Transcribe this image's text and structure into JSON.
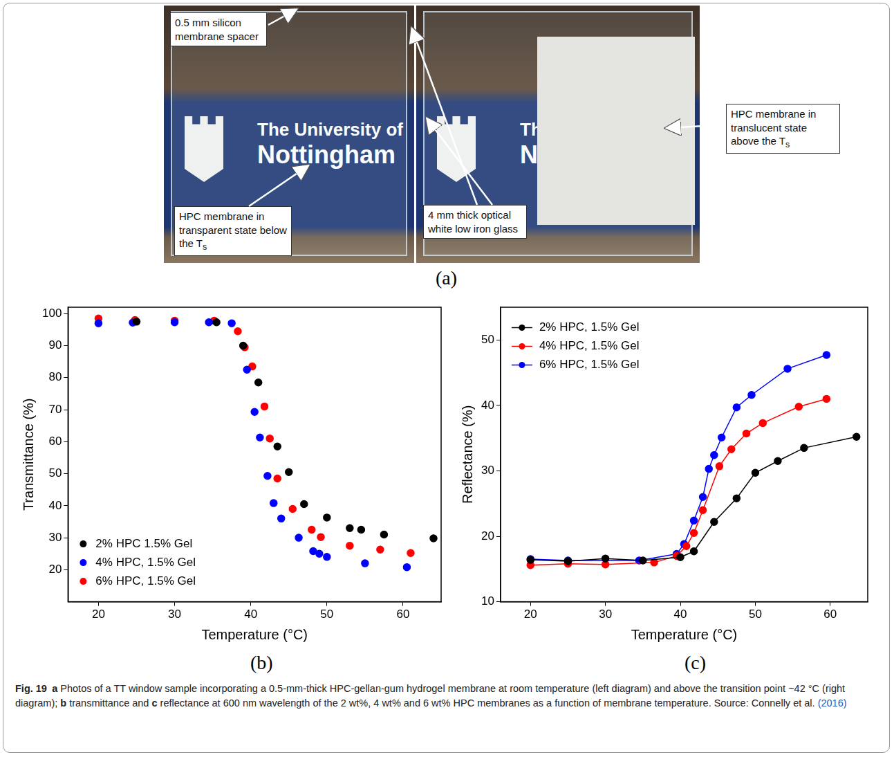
{
  "photo": {
    "background_text": [
      "The University of",
      "Nottingham"
    ],
    "annotations": [
      {
        "parts": [
          {
            "text": "0.5 mm silicon membrane spacer"
          }
        ]
      },
      {
        "parts": [
          {
            "text": "HPC membrane in transparent state below the T"
          },
          {
            "text": "s",
            "sub": true
          }
        ]
      },
      {
        "parts": [
          {
            "text": "4 mm thick optical white low iron glass"
          }
        ]
      },
      {
        "parts": [
          {
            "text": "HPC membrane in translucent state above the T"
          },
          {
            "text": "s",
            "sub": true
          }
        ]
      }
    ],
    "panel_label": "(a)"
  },
  "chart_data": [
    {
      "type": "scatter",
      "panel_label": "(b)",
      "x_label": "Temperature (°C)",
      "y_label": "Transmittance (%)",
      "xlim": [
        16,
        65
      ],
      "xticks": [
        20,
        30,
        40,
        50,
        60
      ],
      "ylim": [
        10,
        102
      ],
      "yticks": [
        20,
        30,
        40,
        50,
        60,
        70,
        80,
        90,
        100
      ],
      "grid": false,
      "legend": "lower left",
      "series": [
        {
          "name": "2% HPC 1.5% Gel",
          "color": "#000000",
          "marker": "circle",
          "x": [
            25,
            35.5,
            39,
            41,
            43.5,
            45,
            47,
            50,
            53,
            54.5,
            57.5,
            64
          ],
          "values": [
            97.5,
            97.3,
            90,
            78.5,
            58.5,
            50.5,
            40.5,
            36.3,
            33,
            32.5,
            31,
            29.8
          ]
        },
        {
          "name": "4% HPC, 1.5% Gel",
          "color": "#0000ff",
          "marker": "circle",
          "x": [
            20,
            24.5,
            30,
            34.5,
            37.5,
            39.5,
            40.5,
            41.2,
            42.2,
            43,
            44,
            46.3,
            48.2,
            49,
            50,
            55,
            60.5
          ],
          "values": [
            97,
            97.2,
            97.3,
            97.3,
            97,
            82.5,
            69.3,
            61.3,
            49.3,
            40.8,
            36,
            30,
            25.8,
            25,
            24,
            22,
            20.8
          ]
        },
        {
          "name": "6% HPC, 1.5% Gel",
          "color": "#ff0000",
          "marker": "circle",
          "x": [
            20,
            24.8,
            30,
            35.2,
            38.3,
            39.2,
            40.2,
            41.8,
            42.5,
            43.5,
            45.5,
            48,
            49.2,
            53,
            57,
            61
          ],
          "values": [
            98.5,
            98,
            97.8,
            97.8,
            94.5,
            89.5,
            83.5,
            71,
            61,
            48.5,
            39,
            32.5,
            30.2,
            27.5,
            26.3,
            25.2
          ]
        }
      ]
    },
    {
      "type": "line",
      "panel_label": "(c)",
      "x_label": "Temperature (°C)",
      "y_label": "Reflectance (%)",
      "xlim": [
        16,
        65
      ],
      "xticks": [
        20,
        30,
        40,
        50,
        60
      ],
      "ylim": [
        10,
        55
      ],
      "yticks": [
        10,
        20,
        30,
        40,
        50
      ],
      "grid": false,
      "legend": "upper left",
      "series": [
        {
          "name": "2% HPC, 1.5% Gel",
          "color": "#000000",
          "marker": "circle",
          "line_style": "solid",
          "x": [
            20,
            25,
            30,
            35,
            40,
            41.8,
            44.5,
            47.5,
            50,
            53,
            56.5,
            63.5
          ],
          "values": [
            16.4,
            16.2,
            16.6,
            16.3,
            16.8,
            17.7,
            22.2,
            25.8,
            29.7,
            31.5,
            33.5,
            35.2
          ]
        },
        {
          "name": "4% HPC, 1.5% Gel",
          "color": "#ff0000",
          "marker": "circle",
          "line_style": "solid",
          "x": [
            20,
            25,
            30,
            36.5,
            39.5,
            40.8,
            41.8,
            43,
            45.2,
            46.8,
            48.8,
            51,
            55.8,
            59.5
          ],
          "values": [
            15.6,
            15.8,
            15.7,
            16,
            17,
            18.5,
            20.5,
            24,
            30.7,
            33.3,
            35.7,
            37.3,
            39.8,
            41
          ]
        },
        {
          "name": "6% HPC, 1.5% Gel",
          "color": "#0000ff",
          "marker": "circle",
          "line_style": "solid",
          "x": [
            20,
            25,
            34.5,
            39.5,
            40.5,
            41.8,
            43,
            43.8,
            44.5,
            45.5,
            47.5,
            49.5,
            54.3,
            59.5
          ],
          "values": [
            16.5,
            16.3,
            16.3,
            17.3,
            18.8,
            22.4,
            26,
            30.3,
            32.4,
            35.1,
            39.7,
            41.6,
            45.6,
            47.7
          ]
        }
      ]
    }
  ],
  "caption": [
    {
      "text": "Fig. 19",
      "bold": true
    },
    {
      "text": "a",
      "bold": true
    },
    {
      "text": "Photos of a TT window sample incorporating a 0.5-mm-thick HPC-gellan-gum hydrogel membrane at room temperature (left diagram) and above the transition point ~42 °C (right diagram);"
    },
    {
      "text": "b",
      "bold": true
    },
    {
      "text": "transmittance and"
    },
    {
      "text": "c",
      "bold": true
    },
    {
      "text": "reflectance at 600 nm wavelength of the 2 wt%, 4 wt% and 6 wt% HPC membranes as a function of membrane temperature. Source: Connelly et al."
    },
    {
      "text": "(2016)",
      "link": true
    }
  ]
}
